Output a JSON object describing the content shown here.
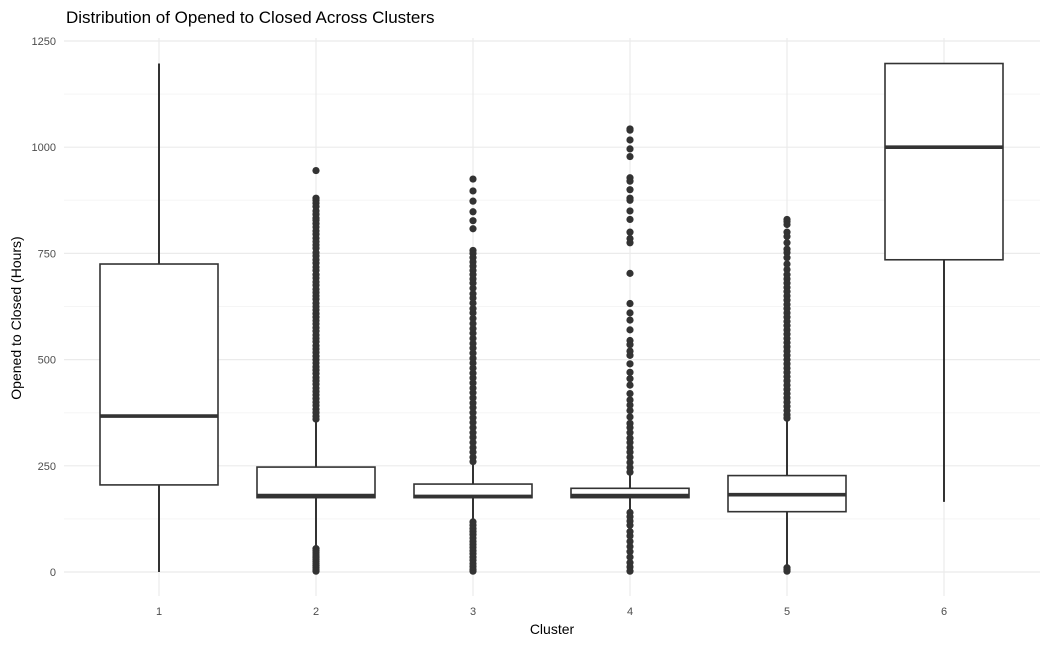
{
  "chart_data": {
    "type": "boxplot",
    "title": "Distribution of Opened to Closed Across Clusters",
    "xlabel": "Cluster",
    "ylabel": "Opened to Closed (Hours)",
    "categories": [
      "1",
      "2",
      "3",
      "4",
      "5",
      "6"
    ],
    "ylim": [
      -60,
      1260
    ],
    "yticks": [
      0,
      250,
      500,
      750,
      1000,
      1250
    ],
    "yticklabels": [
      "0",
      "250",
      "500",
      "750",
      "1000",
      "1250"
    ],
    "grid": true,
    "colors": {
      "box_line": "#333333",
      "outlier": "#333333",
      "grid_major": "#ebebeb",
      "grid_minor": "#f5f5f5"
    },
    "boxes": [
      {
        "category": "1",
        "min": 0,
        "q1": 205,
        "median": 367,
        "q3": 725,
        "max": 1197,
        "outliers": []
      },
      {
        "category": "2",
        "min": 60,
        "q1": 175,
        "median": 180,
        "q3": 247,
        "max": 355,
        "outliers": [
          945,
          880,
          875,
          868,
          860,
          850,
          842,
          833,
          828,
          820,
          812,
          803,
          795,
          786,
          778,
          770,
          762,
          752,
          744,
          735,
          727,
          718,
          710,
          700,
          692,
          683,
          675,
          666,
          658,
          650,
          642,
          633,
          625,
          617,
          608,
          600,
          592,
          584,
          575,
          567,
          558,
          550,
          542,
          533,
          525,
          517,
          508,
          500,
          492,
          483,
          475,
          467,
          458,
          450,
          442,
          433,
          425,
          417,
          408,
          400,
          392,
          383,
          375,
          367,
          360,
          55,
          50,
          45,
          40,
          35,
          30,
          25,
          20,
          15,
          10,
          5,
          2
        ]
      },
      {
        "category": "3",
        "min": 120,
        "q1": 175,
        "median": 178,
        "q3": 207,
        "max": 255,
        "outliers": [
          925,
          897,
          873,
          848,
          827,
          808,
          757,
          750,
          740,
          730,
          720,
          710,
          700,
          690,
          680,
          668,
          655,
          645,
          633,
          620,
          610,
          597,
          585,
          573,
          562,
          550,
          538,
          527,
          515,
          503,
          492,
          480,
          468,
          457,
          445,
          433,
          422,
          410,
          398,
          387,
          375,
          363,
          352,
          340,
          328,
          317,
          305,
          293,
          282,
          270,
          260,
          118,
          110,
          102,
          95,
          88,
          80,
          72,
          65,
          58,
          50,
          43,
          35,
          28,
          20,
          13,
          6,
          2
        ]
      },
      {
        "category": "4",
        "min": 145,
        "q1": 175,
        "median": 180,
        "q3": 197,
        "max": 230,
        "outliers": [
          1043,
          1040,
          1017,
          996,
          978,
          928,
          920,
          900,
          880,
          875,
          850,
          830,
          800,
          785,
          775,
          703,
          632,
          610,
          593,
          570,
          545,
          535,
          520,
          510,
          490,
          470,
          455,
          440,
          420,
          405,
          393,
          380,
          365,
          350,
          340,
          328,
          315,
          305,
          293,
          282,
          270,
          258,
          246,
          235,
          140,
          130,
          120,
          110,
          95,
          85,
          72,
          60,
          48,
          35,
          22,
          12,
          2
        ]
      },
      {
        "category": "5",
        "min": 15,
        "q1": 142,
        "median": 182,
        "q3": 227,
        "max": 355,
        "outliers": [
          830,
          825,
          818,
          800,
          790,
          775,
          760,
          752,
          740,
          725,
          712,
          700,
          690,
          680,
          670,
          660,
          650,
          640,
          630,
          620,
          610,
          600,
          590,
          580,
          570,
          560,
          550,
          540,
          530,
          520,
          510,
          500,
          490,
          480,
          470,
          460,
          450,
          440,
          430,
          420,
          410,
          400,
          390,
          380,
          370,
          362,
          10,
          6,
          2
        ]
      },
      {
        "category": "6",
        "min": 165,
        "q1": 735,
        "median": 1000,
        "q3": 1197,
        "max": 1197,
        "outliers": []
      }
    ]
  }
}
